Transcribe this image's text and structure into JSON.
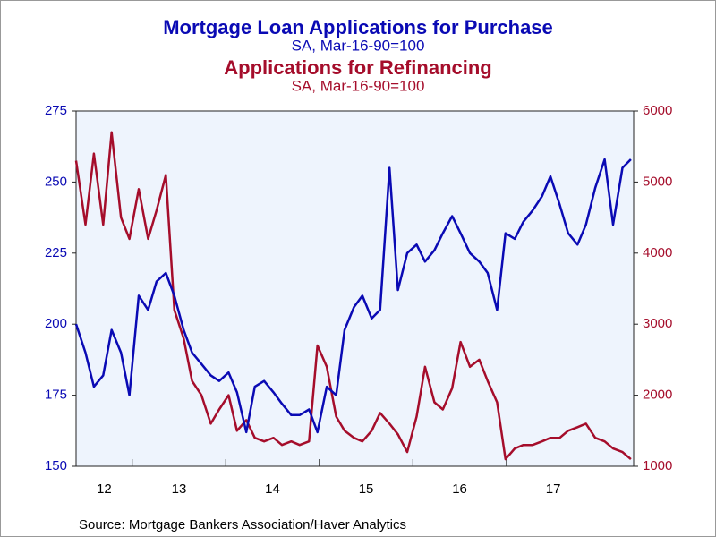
{
  "chart_data": {
    "type": "line",
    "title": "Mortgage Loan Applications for Purchase",
    "subtitle": "SA, Mar-16-90=100",
    "title2": "Applications for Refinancing",
    "subtitle2": "SA, Mar-16-90=100",
    "source": "Source:  Mortgage Bankers Association/Haver Analytics",
    "x": [
      12.4,
      12.5,
      12.59,
      12.69,
      12.78,
      12.88,
      12.97,
      13.07,
      13.17,
      13.26,
      13.36,
      13.45,
      13.55,
      13.64,
      13.74,
      13.84,
      13.93,
      14.03,
      14.12,
      14.22,
      14.31,
      14.41,
      14.51,
      14.6,
      14.7,
      14.79,
      14.89,
      14.98,
      15.08,
      15.18,
      15.27,
      15.37,
      15.46,
      15.56,
      15.65,
      15.75,
      15.84,
      15.94,
      16.04,
      16.13,
      16.23,
      16.32,
      16.42,
      16.51,
      16.61,
      16.71,
      16.8,
      16.9,
      16.99,
      17.09,
      17.18,
      17.28,
      17.38,
      17.47,
      17.57,
      17.66,
      17.76,
      17.85,
      17.95,
      18.05,
      18.14,
      18.24,
      18.33
    ],
    "series": [
      {
        "name": "Applications for Refinancing",
        "color": "#a50d2b",
        "axis": "y2",
        "values": [
          5300,
          4400,
          5400,
          4400,
          5700,
          4500,
          4200,
          4900,
          4200,
          4600,
          5100,
          3200,
          2800,
          2200,
          2000,
          1600,
          1800,
          2000,
          1500,
          1650,
          1400,
          1350,
          1400,
          1300,
          1350,
          1300,
          1350,
          2700,
          2400,
          1700,
          1500,
          1400,
          1350,
          1500,
          1750,
          1600,
          1450,
          1200,
          1700,
          2400,
          1900,
          1800,
          2100,
          2750,
          2400,
          2500,
          2200,
          1900,
          1100,
          1250,
          1300,
          1300,
          1350,
          1400,
          1400,
          1500,
          1550,
          1600,
          1400,
          1350,
          1250,
          1200,
          1100
        ]
      },
      {
        "name": "Mortgage Loan Applications for Purchase",
        "color": "#0a0ab4",
        "values": [
          200,
          190,
          178,
          182,
          198,
          190,
          175,
          210,
          205,
          215,
          218,
          210,
          198,
          190,
          186,
          182,
          180,
          183,
          176,
          162,
          178,
          180,
          176,
          172,
          168,
          168,
          170,
          162,
          178,
          175,
          198,
          206,
          210,
          202,
          205,
          255,
          212,
          225,
          228,
          222,
          226,
          232,
          238,
          232,
          225,
          222,
          218,
          205,
          232,
          230,
          236,
          240,
          245,
          252,
          242,
          232,
          228,
          235,
          248,
          258,
          235,
          255,
          258
        ]
      }
    ],
    "xlim": [
      12.4,
      18.36
    ],
    "xticks": [
      {
        "value": 12,
        "label": "12"
      },
      {
        "value": 13,
        "label": "13"
      },
      {
        "value": 14,
        "label": "14"
      },
      {
        "value": 15,
        "label": "15"
      },
      {
        "value": 16,
        "label": "16"
      },
      {
        "value": 17,
        "label": "17"
      }
    ],
    "ylim": [
      150,
      275
    ],
    "yticks": [
      150,
      175,
      200,
      225,
      250,
      275
    ],
    "y2lim": [
      1000,
      6000
    ],
    "y2ticks": [
      1000,
      2000,
      3000,
      4000,
      5000,
      6000
    ]
  }
}
